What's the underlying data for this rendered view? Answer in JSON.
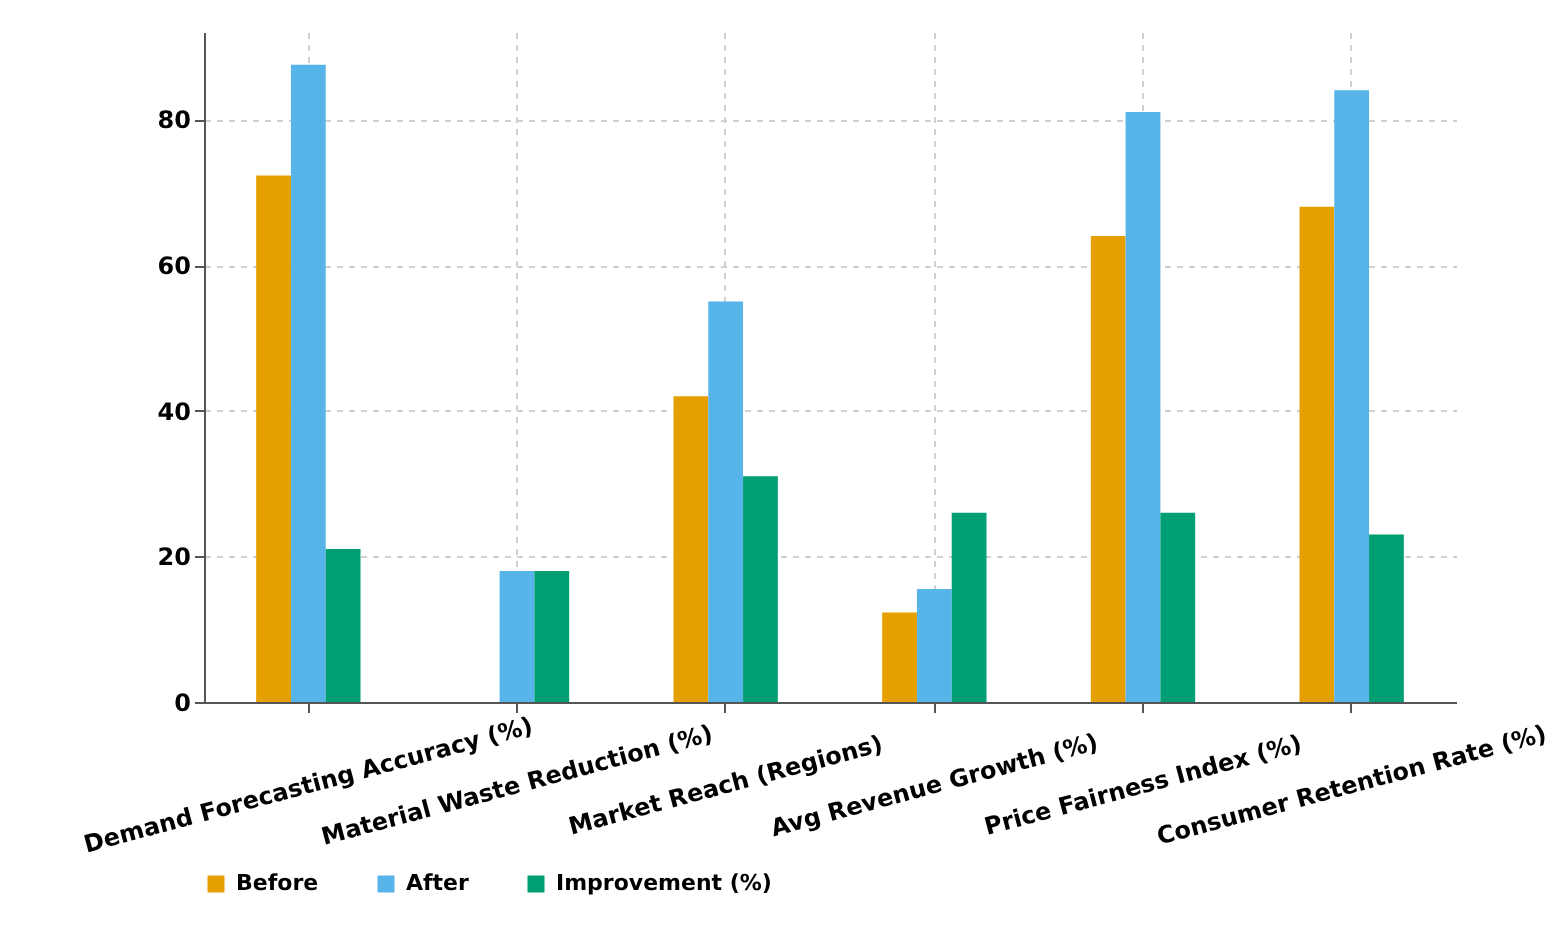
{
  "chart_data": {
    "type": "bar",
    "categories": [
      "Demand Forecasting Accuracy (%)",
      "Material Waste Reduction (%)",
      "Market Reach (Regions)",
      "Avg Revenue Growth (%)",
      "Price Fairness Index (%)",
      "Consumer Retention Rate (%)"
    ],
    "series": [
      {
        "name": "Before",
        "color": "#e69f00",
        "values": [
          72.3,
          null,
          42,
          12.3,
          64,
          68
        ]
      },
      {
        "name": "After",
        "color": "#56b4e9",
        "values": [
          87.5,
          18,
          55,
          15.5,
          81,
          84
        ]
      },
      {
        "name": "Improvement (%)",
        "color": "#009e73",
        "values": [
          21,
          18,
          31,
          26,
          26,
          23
        ]
      }
    ],
    "ylim": [
      0,
      92
    ],
    "yticks": [
      0,
      20,
      40,
      60,
      80
    ],
    "grid": true,
    "legend": "bottom"
  }
}
